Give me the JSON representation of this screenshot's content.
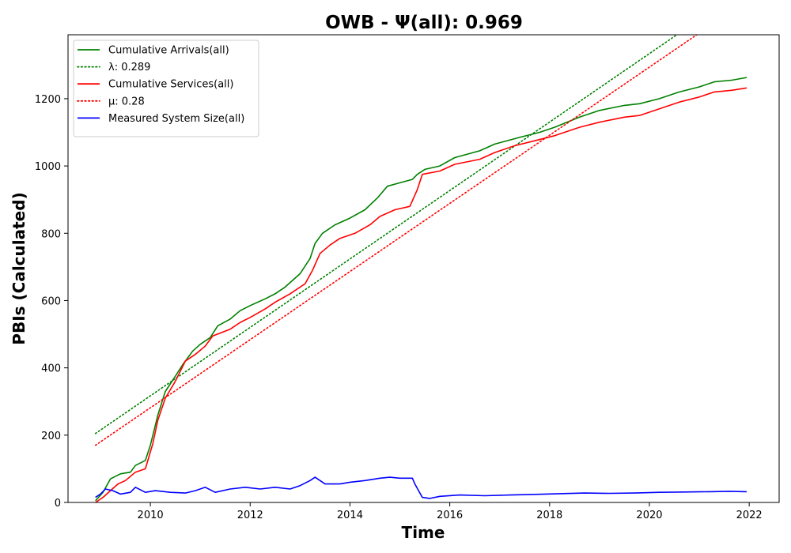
{
  "chart_data": {
    "type": "line",
    "title": "OWB -  Ψ(all): 0.969",
    "xlabel": "Time",
    "ylabel": "PBIs (Calculated)",
    "xlim": [
      2008.35,
      2022.6
    ],
    "ylim": [
      0,
      1390
    ],
    "xticks": [
      2010,
      2012,
      2014,
      2016,
      2018,
      2020,
      2022
    ],
    "yticks": [
      0,
      200,
      400,
      600,
      800,
      1000,
      1200
    ],
    "grid": false,
    "legend_position": "top-left",
    "series": [
      {
        "name": "Cumulative Arrivals(all)",
        "style": "solid",
        "color": "#008000",
        "points": [
          [
            2008.9,
            5
          ],
          [
            2009.05,
            30
          ],
          [
            2009.2,
            70
          ],
          [
            2009.4,
            85
          ],
          [
            2009.6,
            90
          ],
          [
            2009.7,
            110
          ],
          [
            2009.9,
            125
          ],
          [
            2010.0,
            170
          ],
          [
            2010.15,
            260
          ],
          [
            2010.3,
            330
          ],
          [
            2010.5,
            375
          ],
          [
            2010.65,
            410
          ],
          [
            2010.85,
            450
          ],
          [
            2011.0,
            470
          ],
          [
            2011.2,
            490
          ],
          [
            2011.35,
            525
          ],
          [
            2011.6,
            545
          ],
          [
            2011.8,
            570
          ],
          [
            2012.0,
            585
          ],
          [
            2012.3,
            605
          ],
          [
            2012.5,
            620
          ],
          [
            2012.7,
            640
          ],
          [
            2013.0,
            680
          ],
          [
            2013.2,
            725
          ],
          [
            2013.3,
            770
          ],
          [
            2013.45,
            800
          ],
          [
            2013.7,
            825
          ],
          [
            2014.0,
            845
          ],
          [
            2014.3,
            870
          ],
          [
            2014.55,
            905
          ],
          [
            2014.75,
            940
          ],
          [
            2015.0,
            950
          ],
          [
            2015.25,
            960
          ],
          [
            2015.35,
            975
          ],
          [
            2015.5,
            990
          ],
          [
            2015.8,
            1000
          ],
          [
            2016.1,
            1025
          ],
          [
            2016.6,
            1045
          ],
          [
            2016.9,
            1065
          ],
          [
            2017.4,
            1085
          ],
          [
            2017.8,
            1100
          ],
          [
            2018.1,
            1115
          ],
          [
            2018.6,
            1145
          ],
          [
            2019.0,
            1165
          ],
          [
            2019.5,
            1180
          ],
          [
            2019.8,
            1185
          ],
          [
            2020.2,
            1200
          ],
          [
            2020.6,
            1220
          ],
          [
            2021.0,
            1235
          ],
          [
            2021.3,
            1250
          ],
          [
            2021.65,
            1255
          ],
          [
            2021.95,
            1263
          ]
        ]
      },
      {
        "name": "λ: 0.289",
        "style": "dotted",
        "color": "#008000",
        "points": [
          [
            2008.9,
            205
          ],
          [
            2020.55,
            1390
          ]
        ]
      },
      {
        "name": "Cumulative Services(all)",
        "style": "solid",
        "color": "#ff0000",
        "points": [
          [
            2008.9,
            0
          ],
          [
            2009.05,
            15
          ],
          [
            2009.2,
            35
          ],
          [
            2009.35,
            55
          ],
          [
            2009.5,
            65
          ],
          [
            2009.7,
            90
          ],
          [
            2009.9,
            100
          ],
          [
            2010.05,
            175
          ],
          [
            2010.15,
            245
          ],
          [
            2010.3,
            310
          ],
          [
            2010.5,
            360
          ],
          [
            2010.7,
            420
          ],
          [
            2010.9,
            440
          ],
          [
            2011.1,
            465
          ],
          [
            2011.25,
            495
          ],
          [
            2011.6,
            515
          ],
          [
            2011.8,
            535
          ],
          [
            2012.0,
            550
          ],
          [
            2012.3,
            575
          ],
          [
            2012.5,
            595
          ],
          [
            2012.8,
            620
          ],
          [
            2013.1,
            650
          ],
          [
            2013.25,
            690
          ],
          [
            2013.4,
            740
          ],
          [
            2013.6,
            765
          ],
          [
            2013.8,
            785
          ],
          [
            2014.1,
            800
          ],
          [
            2014.4,
            825
          ],
          [
            2014.6,
            850
          ],
          [
            2014.9,
            870
          ],
          [
            2015.2,
            880
          ],
          [
            2015.35,
            930
          ],
          [
            2015.45,
            975
          ],
          [
            2015.8,
            985
          ],
          [
            2016.1,
            1005
          ],
          [
            2016.6,
            1020
          ],
          [
            2016.9,
            1040
          ],
          [
            2017.3,
            1060
          ],
          [
            2017.7,
            1075
          ],
          [
            2018.1,
            1090
          ],
          [
            2018.6,
            1115
          ],
          [
            2019.0,
            1130
          ],
          [
            2019.5,
            1145
          ],
          [
            2019.8,
            1150
          ],
          [
            2020.2,
            1170
          ],
          [
            2020.6,
            1190
          ],
          [
            2021.0,
            1205
          ],
          [
            2021.3,
            1220
          ],
          [
            2021.65,
            1225
          ],
          [
            2021.95,
            1232
          ]
        ]
      },
      {
        "name": "μ: 0.28",
        "style": "dotted",
        "color": "#ff0000",
        "points": [
          [
            2008.9,
            170
          ],
          [
            2020.95,
            1390
          ]
        ]
      },
      {
        "name": "Measured System Size(all)",
        "style": "solid",
        "color": "#0000ff",
        "points": [
          [
            2008.9,
            15
          ],
          [
            2009.0,
            25
          ],
          [
            2009.1,
            40
          ],
          [
            2009.25,
            35
          ],
          [
            2009.4,
            25
          ],
          [
            2009.6,
            30
          ],
          [
            2009.7,
            45
          ],
          [
            2009.9,
            30
          ],
          [
            2010.1,
            35
          ],
          [
            2010.4,
            30
          ],
          [
            2010.7,
            28
          ],
          [
            2010.9,
            35
          ],
          [
            2011.1,
            45
          ],
          [
            2011.3,
            30
          ],
          [
            2011.6,
            40
          ],
          [
            2011.9,
            45
          ],
          [
            2012.2,
            40
          ],
          [
            2012.5,
            45
          ],
          [
            2012.8,
            40
          ],
          [
            2013.0,
            50
          ],
          [
            2013.2,
            65
          ],
          [
            2013.3,
            75
          ],
          [
            2013.5,
            55
          ],
          [
            2013.8,
            55
          ],
          [
            2014.0,
            60
          ],
          [
            2014.3,
            65
          ],
          [
            2014.6,
            72
          ],
          [
            2014.8,
            75
          ],
          [
            2015.0,
            72
          ],
          [
            2015.25,
            72
          ],
          [
            2015.3,
            55
          ],
          [
            2015.45,
            15
          ],
          [
            2015.6,
            12
          ],
          [
            2015.8,
            18
          ],
          [
            2016.2,
            22
          ],
          [
            2016.7,
            20
          ],
          [
            2017.2,
            22
          ],
          [
            2017.7,
            24
          ],
          [
            2018.2,
            26
          ],
          [
            2018.7,
            28
          ],
          [
            2019.2,
            27
          ],
          [
            2019.7,
            28
          ],
          [
            2020.2,
            30
          ],
          [
            2020.7,
            31
          ],
          [
            2021.2,
            32
          ],
          [
            2021.6,
            33
          ],
          [
            2021.95,
            32
          ]
        ]
      }
    ]
  }
}
